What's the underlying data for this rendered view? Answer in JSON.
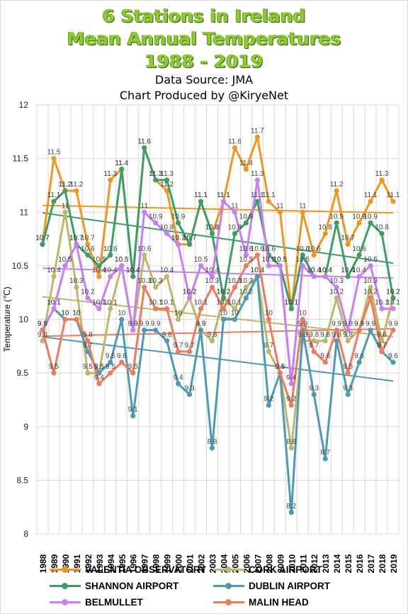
{
  "header": {
    "title_lines": [
      "6 Stations in Ireland",
      "Mean Annual Temperatures",
      "1988 - 2019"
    ],
    "source": "Data Source: JMA",
    "credit": "Chart Produced by @KiryeNet"
  },
  "chart_data": {
    "type": "line",
    "title": "6 Stations in Ireland Mean Annual Temperatures 1988 - 2019",
    "xlabel": "",
    "ylabel": "Temperature (℃)",
    "ylim": [
      8,
      12
    ],
    "yticks": [
      8,
      8.5,
      9,
      9.5,
      10,
      10.5,
      11,
      11.5,
      12
    ],
    "x": [
      1988,
      1989,
      1990,
      1991,
      1992,
      1993,
      1994,
      1995,
      1996,
      1997,
      1998,
      1999,
      2000,
      2001,
      2002,
      2003,
      2004,
      2005,
      2006,
      2007,
      2008,
      2009,
      2010,
      2011,
      2012,
      2013,
      2014,
      2015,
      2016,
      2017,
      2018,
      2019
    ],
    "grid": true,
    "trendlines": true,
    "legend_position": "bottom",
    "series": [
      {
        "name": "VALENTIA OBSERVATORY",
        "color": "#f0961e",
        "values": [
          10.7,
          11.5,
          11.2,
          11.2,
          10.7,
          10.4,
          11.3,
          11.4,
          10.4,
          11.6,
          11.3,
          11.2,
          10.7,
          10.7,
          11.1,
          10.8,
          11.1,
          11.6,
          11.4,
          11.7,
          11.1,
          11.0,
          10.1,
          11.0,
          10.6,
          10.8,
          11.2,
          10.7,
          10.9,
          11.1,
          11.3,
          11.1
        ]
      },
      {
        "name": "CORK AIRPORT",
        "color": "#bcb76a",
        "values": [
          9.8,
          10.4,
          11.0,
          10.3,
          9.5,
          9.5,
          10.1,
          10.5,
          9.9,
          10.6,
          10.3,
          10.4,
          10.0,
          10.2,
          9.9,
          9.8,
          10.2,
          10.1,
          10.3,
          10.4,
          9.7,
          9.5,
          8.8,
          9.8,
          9.8,
          9.8,
          10.2,
          9.8,
          9.9,
          10.3,
          9.8,
          10.2
        ]
      },
      {
        "name": "SHANNON AIRPORT",
        "color": "#3c9e64",
        "values": [
          10.7,
          11.1,
          11.2,
          10.7,
          10.6,
          10.5,
          10.6,
          11.4,
          10.4,
          11.6,
          11.3,
          11.3,
          10.9,
          10.7,
          11.1,
          10.8,
          10.2,
          10.8,
          10.9,
          11.1,
          10.6,
          10.5,
          10.1,
          10.6,
          10.4,
          10.4,
          10.9,
          10.4,
          10.6,
          10.9,
          10.8,
          10.2
        ]
      },
      {
        "name": "DUBLIN AIRPORT",
        "color": "#4b9bb7",
        "values": [
          9.9,
          10.1,
          10.0,
          10.0,
          9.7,
          9.5,
          9.6,
          10.0,
          9.1,
          9.9,
          9.9,
          9.8,
          9.4,
          9.3,
          9.9,
          8.8,
          10.0,
          10.0,
          10.2,
          10.4,
          9.2,
          9.5,
          8.2,
          9.9,
          9.3,
          8.7,
          9.8,
          9.3,
          9.6,
          9.9,
          9.7,
          9.6
        ]
      },
      {
        "name": "BELMULLET",
        "color": "#c97ef5",
        "values": [
          9.9,
          10.1,
          10.5,
          10.7,
          10.2,
          10.1,
          10.4,
          10.5,
          9.9,
          11.0,
          10.9,
          10.8,
          10.7,
          10.2,
          10.5,
          10.4,
          11.1,
          11.0,
          10.6,
          11.3,
          10.5,
          10.5,
          9.4,
          10.5,
          10.4,
          10.4,
          10.3,
          9.9,
          10.4,
          10.5,
          10.1,
          10.1
        ]
      },
      {
        "name": "MALIN HEAD",
        "color": "#ef7b5e",
        "values": [
          9.9,
          9.5,
          10.0,
          10.0,
          9.8,
          9.4,
          9.5,
          9.6,
          9.5,
          10.3,
          10.1,
          10.1,
          9.7,
          9.7,
          10.1,
          10.3,
          10.1,
          10.3,
          10.5,
          10.6,
          10.0,
          9.5,
          9.2,
          10.0,
          9.7,
          9.6,
          9.9,
          9.5,
          9.9,
          10.2,
          9.7,
          9.9
        ]
      }
    ]
  }
}
